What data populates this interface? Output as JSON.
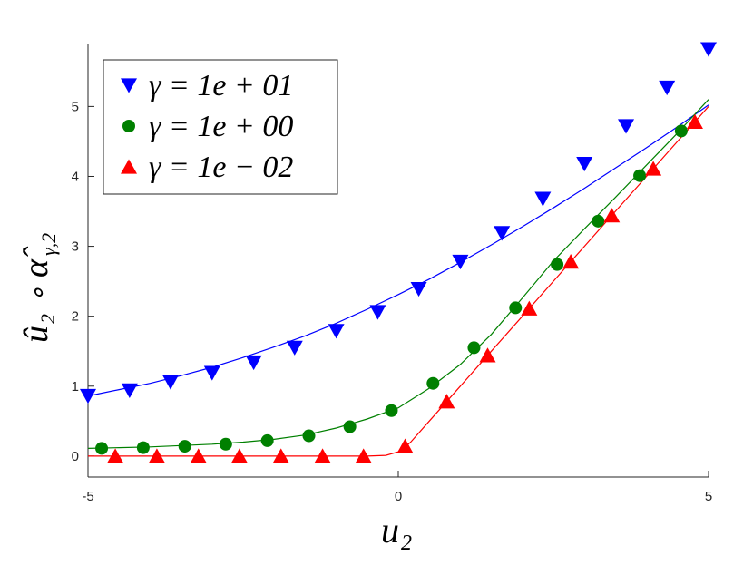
{
  "chart_data": {
    "type": "line",
    "xlabel": "u_2",
    "ylabel": "û_2 ∘ α̂_{γ,2}",
    "xlim": [
      -5,
      5
    ],
    "ylim": [
      -0.3,
      5.9
    ],
    "x_ticks": [
      -5,
      0,
      5
    ],
    "y_ticks": [
      0,
      1,
      2,
      3,
      4,
      5
    ],
    "grid": false,
    "legend_position": "top-left",
    "series": [
      {
        "name": "γ = 1e + 01",
        "color": "#0000ff",
        "marker": "triangle-down",
        "curve": {
          "x": [
            -5,
            -4.5,
            -4,
            -3.5,
            -3,
            -2.5,
            -2,
            -1.5,
            -1,
            -0.5,
            0,
            0.5,
            1,
            1.5,
            2,
            2.5,
            3,
            3.5,
            4,
            4.5,
            5
          ],
          "y": [
            0.86,
            0.95,
            1.04,
            1.15,
            1.27,
            1.41,
            1.56,
            1.72,
            1.9,
            2.1,
            2.31,
            2.53,
            2.77,
            3.02,
            3.28,
            3.55,
            3.83,
            4.12,
            4.41,
            4.71,
            5.02
          ]
        },
        "markers": {
          "x": [
            -5,
            -4.33,
            -3.67,
            -3,
            -2.33,
            -1.67,
            -1,
            -0.33,
            0.33,
            1,
            1.67,
            2.33,
            3,
            3.67,
            4.33,
            5
          ],
          "y": [
            0.86,
            0.94,
            1.06,
            1.19,
            1.34,
            1.55,
            1.79,
            2.06,
            2.39,
            2.78,
            3.19,
            3.68,
            4.18,
            4.72,
            5.27,
            5.82
          ]
        }
      },
      {
        "name": "γ = 1e + 00",
        "color": "#008000",
        "marker": "circle",
        "curve": {
          "x": [
            -5,
            -4.5,
            -4,
            -3.5,
            -3,
            -2.5,
            -2,
            -1.5,
            -1,
            -0.5,
            0,
            0.5,
            1,
            1.5,
            2,
            2.5,
            3,
            3.5,
            4,
            4.5,
            5
          ],
          "y": [
            0.11,
            0.12,
            0.13,
            0.15,
            0.17,
            0.2,
            0.24,
            0.3,
            0.4,
            0.53,
            0.69,
            0.97,
            1.31,
            1.74,
            2.26,
            2.79,
            3.25,
            3.7,
            4.16,
            4.62,
            5.1
          ]
        },
        "markers": {
          "x": [
            -4.78,
            -4.11,
            -3.44,
            -2.78,
            -2.11,
            -1.44,
            -0.78,
            -0.11,
            0.56,
            1.22,
            1.89,
            2.56,
            3.22,
            3.89,
            4.56
          ],
          "y": [
            0.11,
            0.12,
            0.14,
            0.17,
            0.22,
            0.29,
            0.42,
            0.65,
            1.04,
            1.55,
            2.12,
            2.74,
            3.36,
            4.01,
            4.65
          ]
        }
      },
      {
        "name": "γ = 1e − 02",
        "color": "#ff0000",
        "marker": "triangle-up",
        "curve": {
          "x": [
            -5,
            -4,
            -3,
            -2,
            -1,
            -0.5,
            -0.2,
            0,
            0.1,
            0.2,
            0.5,
            1,
            1.5,
            2,
            2.5,
            3,
            3.5,
            4,
            4.5,
            5
          ],
          "y": [
            0,
            0,
            0,
            0,
            0,
            0,
            0.01,
            0.06,
            0.12,
            0.2,
            0.5,
            1.0,
            1.5,
            2.0,
            2.5,
            3.0,
            3.5,
            4.0,
            4.5,
            5.0
          ]
        },
        "markers": {
          "x": [
            -4.56,
            -3.89,
            -3.22,
            -2.56,
            -1.89,
            -1.22,
            -0.56,
            0.11,
            0.78,
            1.44,
            2.11,
            2.78,
            3.44,
            4.11,
            4.78
          ],
          "y": [
            0,
            0,
            0,
            0,
            0,
            0,
            0,
            0.14,
            0.78,
            1.44,
            2.11,
            2.78,
            3.44,
            4.11,
            4.78
          ]
        }
      }
    ]
  }
}
